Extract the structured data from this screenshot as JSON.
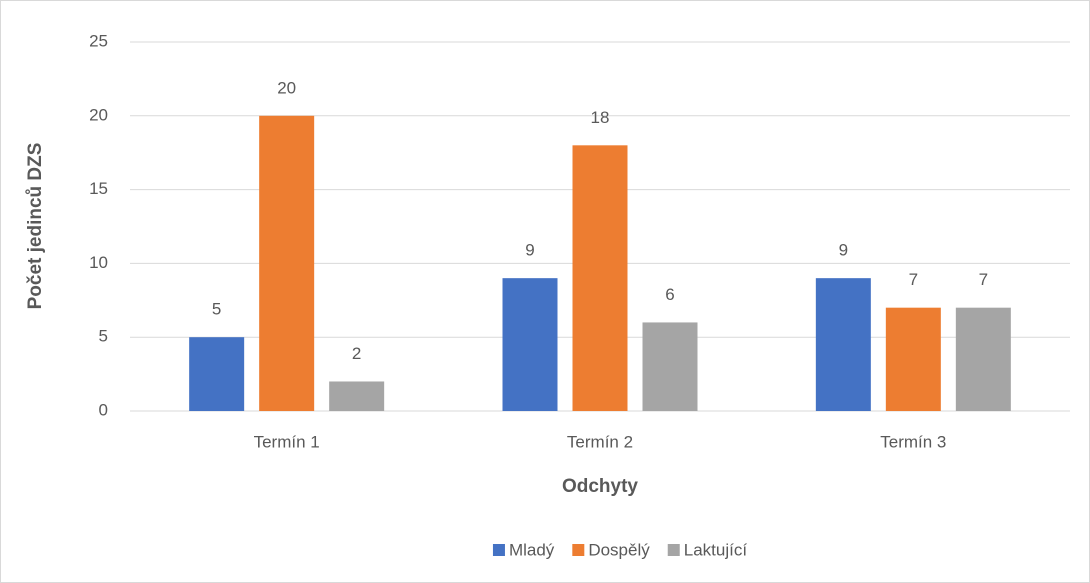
{
  "chart_data": {
    "type": "bar",
    "x_label": "Odchyty",
    "y_label": "Počet jedinců DZS",
    "categories": [
      "Termín 1",
      "Termín 2",
      "Termín 3"
    ],
    "series": [
      {
        "name": "Mladý",
        "color": "#4472c4",
        "values": [
          5,
          9,
          9
        ]
      },
      {
        "name": "Dospělý",
        "color": "#ed7d31",
        "values": [
          20,
          18,
          7
        ]
      },
      {
        "name": "Laktující",
        "color": "#a5a5a5",
        "values": [
          2,
          6,
          7
        ]
      }
    ],
    "ylim": [
      0,
      25
    ],
    "yticks": [
      0,
      5,
      10,
      15,
      20,
      25
    ],
    "grid": true,
    "legend": "bottom"
  }
}
